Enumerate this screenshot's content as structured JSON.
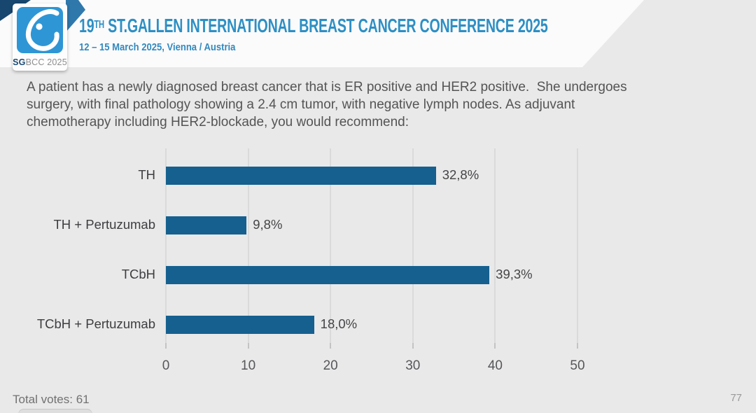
{
  "header": {
    "title_num": "19",
    "title_sup": "TH",
    "title_rest": " ST.GALLEN INTERNATIONAL BREAST CANCER CONFERENCE 2025",
    "subtitle": "12 – 15 March 2025, Vienna / Austria",
    "logo": {
      "text_bold": "SG",
      "text_rest": "BCC 2025"
    }
  },
  "question": {
    "lines": [
      "A patient has a newly diagnosed breast cancer that is ER positive and HER2 positive.  She undergoes",
      "surgery, with final pathology showing a 2.4 cm tumor, with negative lymph nodes. As adjuvant",
      "chemotherapy including HER2-blockade, you would recommend:"
    ]
  },
  "chart_data": {
    "type": "bar",
    "orientation": "horizontal",
    "title": "",
    "categories": [
      "TH",
      "TH + Pertuzumab",
      "TCbH",
      "TCbH + Pertuzumab"
    ],
    "values": [
      32.8,
      9.8,
      39.3,
      18.0
    ],
    "value_labels": [
      "32,8%",
      "9,8%",
      "39,3%",
      "18,0%"
    ],
    "xlabel": "",
    "ylabel": "",
    "xlim": [
      0,
      50
    ],
    "xticks": [
      0,
      10,
      20,
      30,
      40,
      50
    ],
    "xtick_labels": [
      "0",
      "10",
      "20",
      "30",
      "40",
      "50"
    ],
    "grid": true,
    "legend": false,
    "bar_color": "#15608f"
  },
  "footer": {
    "total_votes": "Total votes: 61",
    "page_number": "77"
  },
  "colors": {
    "slide_background": "#e9e9ea",
    "header_background": "#fbfbfc",
    "title_blue": "#2d8fc4",
    "logo_blue": "#2e96d5",
    "ribbon_navy": "#17466e",
    "ribbon_blue": "#2f78ab",
    "bar_blue": "#15608f",
    "text_gray": "#545454"
  }
}
